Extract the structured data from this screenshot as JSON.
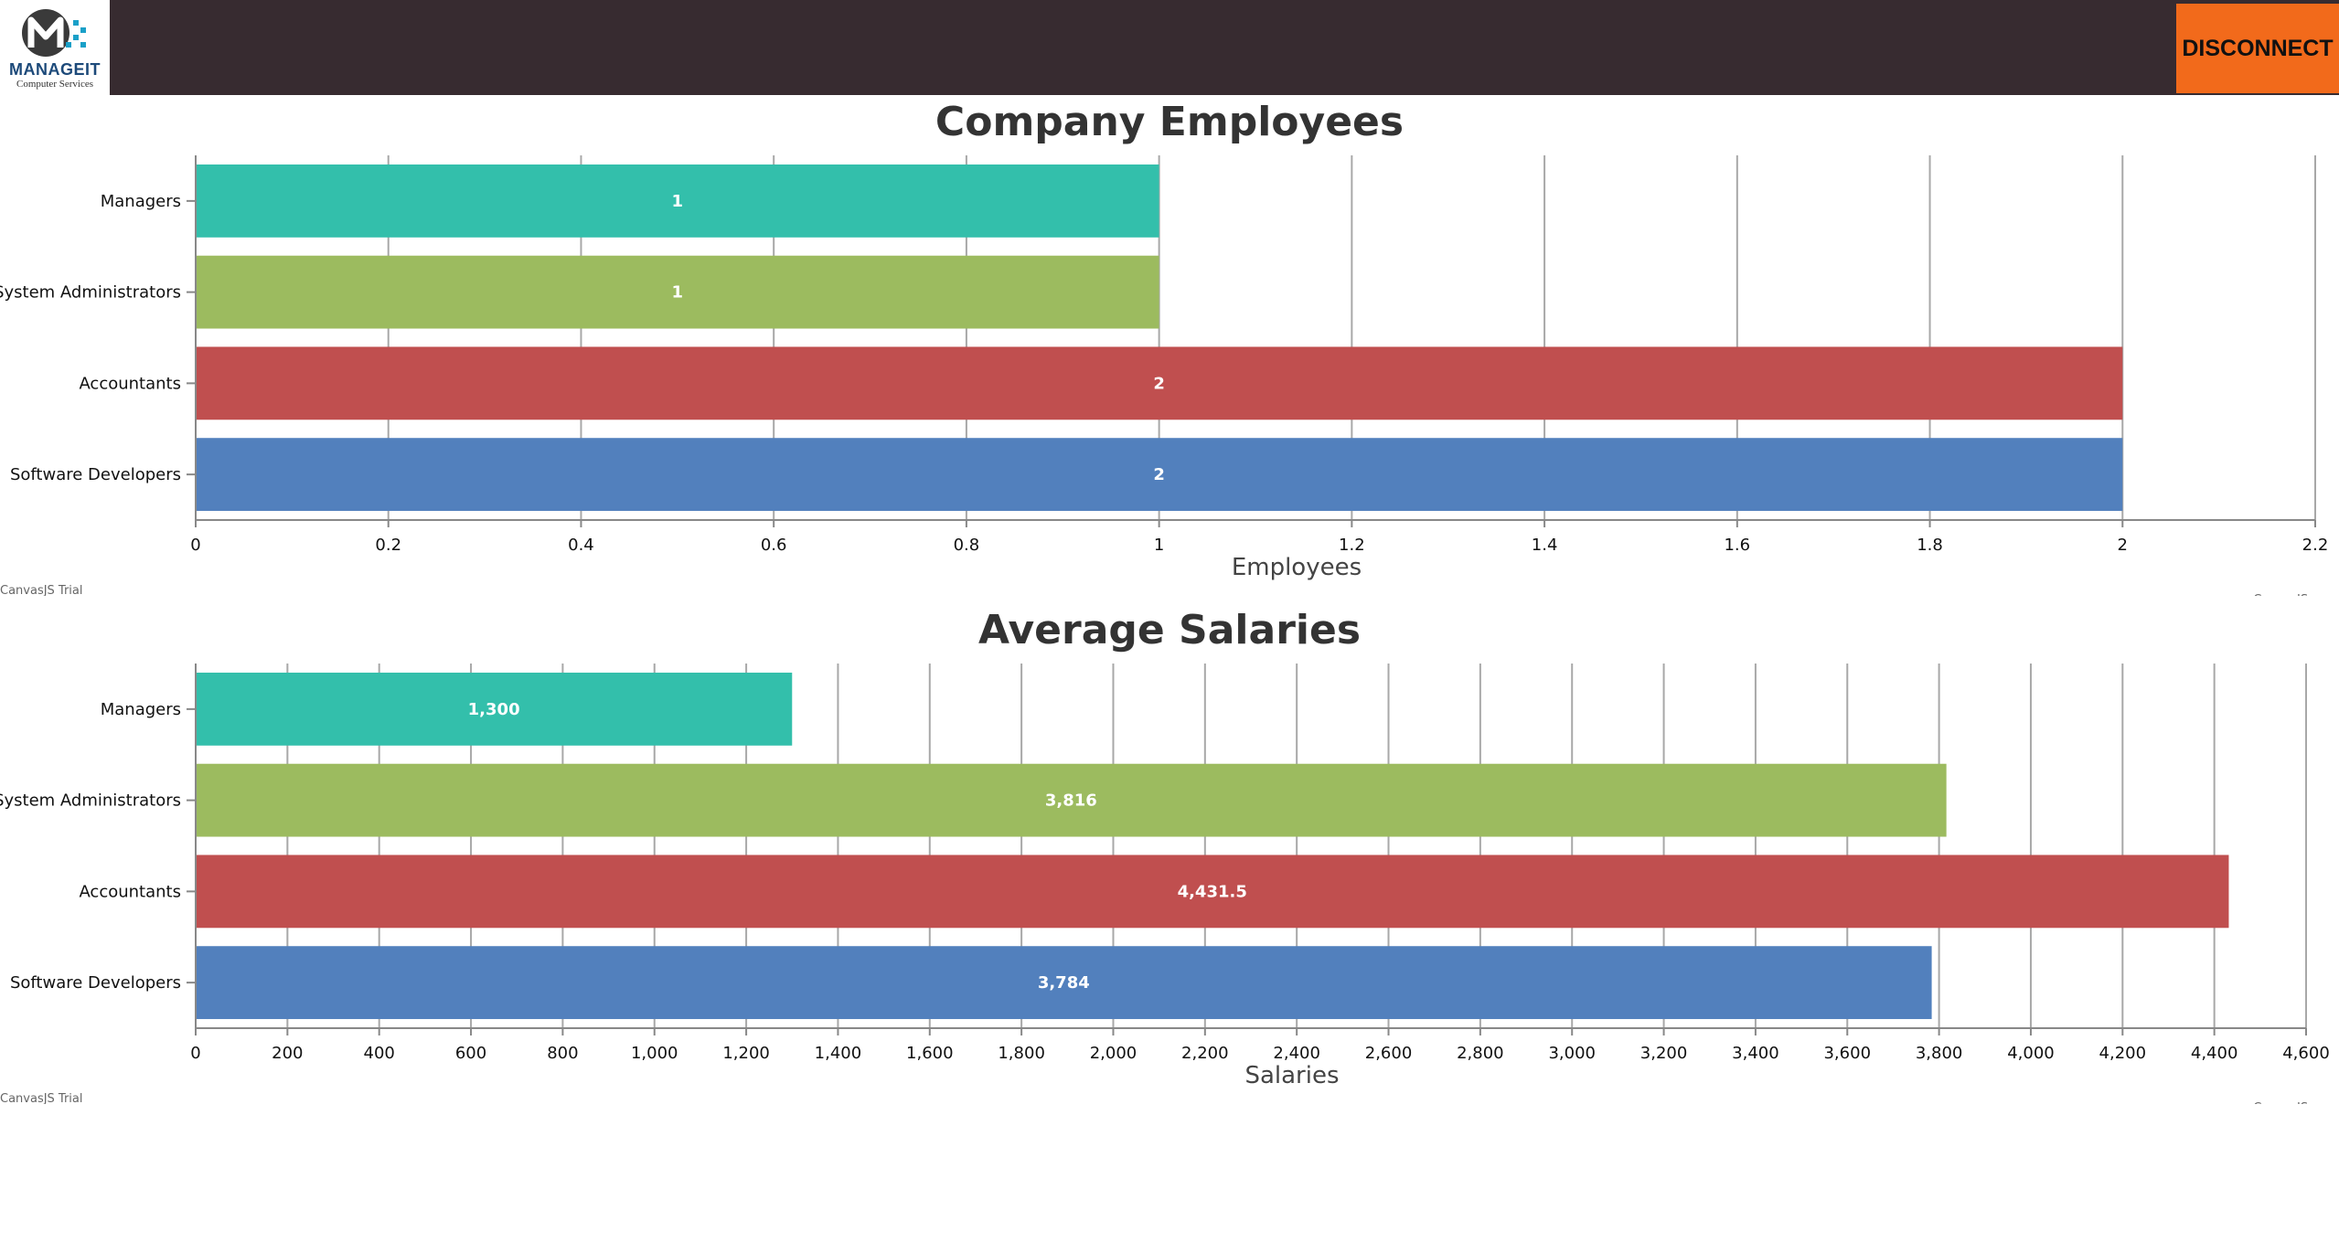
{
  "header": {
    "logo_name": "MANAGEIT",
    "logo_subtitle": "Computer Services",
    "disconnect_label": "DISCONNECT"
  },
  "colors": {
    "topbar": "#372b30",
    "disconnect": "#f26a1b",
    "managers": "#33bfab",
    "system_administrators": "#9cbb5f",
    "accountants": "#c04f4f",
    "software_developers": "#5280bd"
  },
  "chart_data": [
    {
      "type": "bar",
      "orientation": "horizontal",
      "title": "Company Employees",
      "xlabel": "Employees",
      "ylabel": "",
      "categories": [
        "Managers",
        "System Administrators",
        "Accountants",
        "Software Developers"
      ],
      "values": [
        1,
        1,
        2,
        2
      ],
      "value_labels": [
        "1",
        "1",
        "2",
        "2"
      ],
      "bar_colors": [
        "#33bfab",
        "#9cbb5f",
        "#c04f4f",
        "#5280bd"
      ],
      "xlim": [
        0,
        2.2
      ],
      "xticks": [
        0,
        0.2,
        0.4,
        0.6,
        0.8,
        1,
        1.2,
        1.4,
        1.6,
        1.8,
        2,
        2.2
      ],
      "xtick_labels": [
        "0",
        "0.2",
        "0.4",
        "0.6",
        "0.8",
        "1",
        "1.2",
        "1.4",
        "1.6",
        "1.8",
        "2",
        "2.2"
      ],
      "grid": true,
      "credit_left": "CanvasJS Trial",
      "credit_right": "CanvasJS.com"
    },
    {
      "type": "bar",
      "orientation": "horizontal",
      "title": "Average Salaries",
      "xlabel": "Salaries",
      "ylabel": "",
      "categories": [
        "Managers",
        "System Administrators",
        "Accountants",
        "Software Developers"
      ],
      "values": [
        1300,
        3816,
        4431.5,
        3784
      ],
      "value_labels": [
        "1,300",
        "3,816",
        "4,431.5",
        "3,784"
      ],
      "bar_colors": [
        "#33bfab",
        "#9cbb5f",
        "#c04f4f",
        "#5280bd"
      ],
      "xlim": [
        0,
        4600
      ],
      "xticks": [
        0,
        200,
        400,
        600,
        800,
        1000,
        1200,
        1400,
        1600,
        1800,
        2000,
        2200,
        2400,
        2600,
        2800,
        3000,
        3200,
        3400,
        3600,
        3800,
        4000,
        4200,
        4400,
        4600
      ],
      "xtick_labels": [
        "0",
        "200",
        "400",
        "600",
        "800",
        "1,000",
        "1,200",
        "1,400",
        "1,600",
        "1,800",
        "2,000",
        "2,200",
        "2,400",
        "2,600",
        "2,800",
        "3,000",
        "3,200",
        "3,400",
        "3,600",
        "3,800",
        "4,000",
        "4,200",
        "4,400",
        "4,600"
      ],
      "grid": true,
      "credit_left": "CanvasJS Trial",
      "credit_right": "CanvasJS.com"
    }
  ]
}
